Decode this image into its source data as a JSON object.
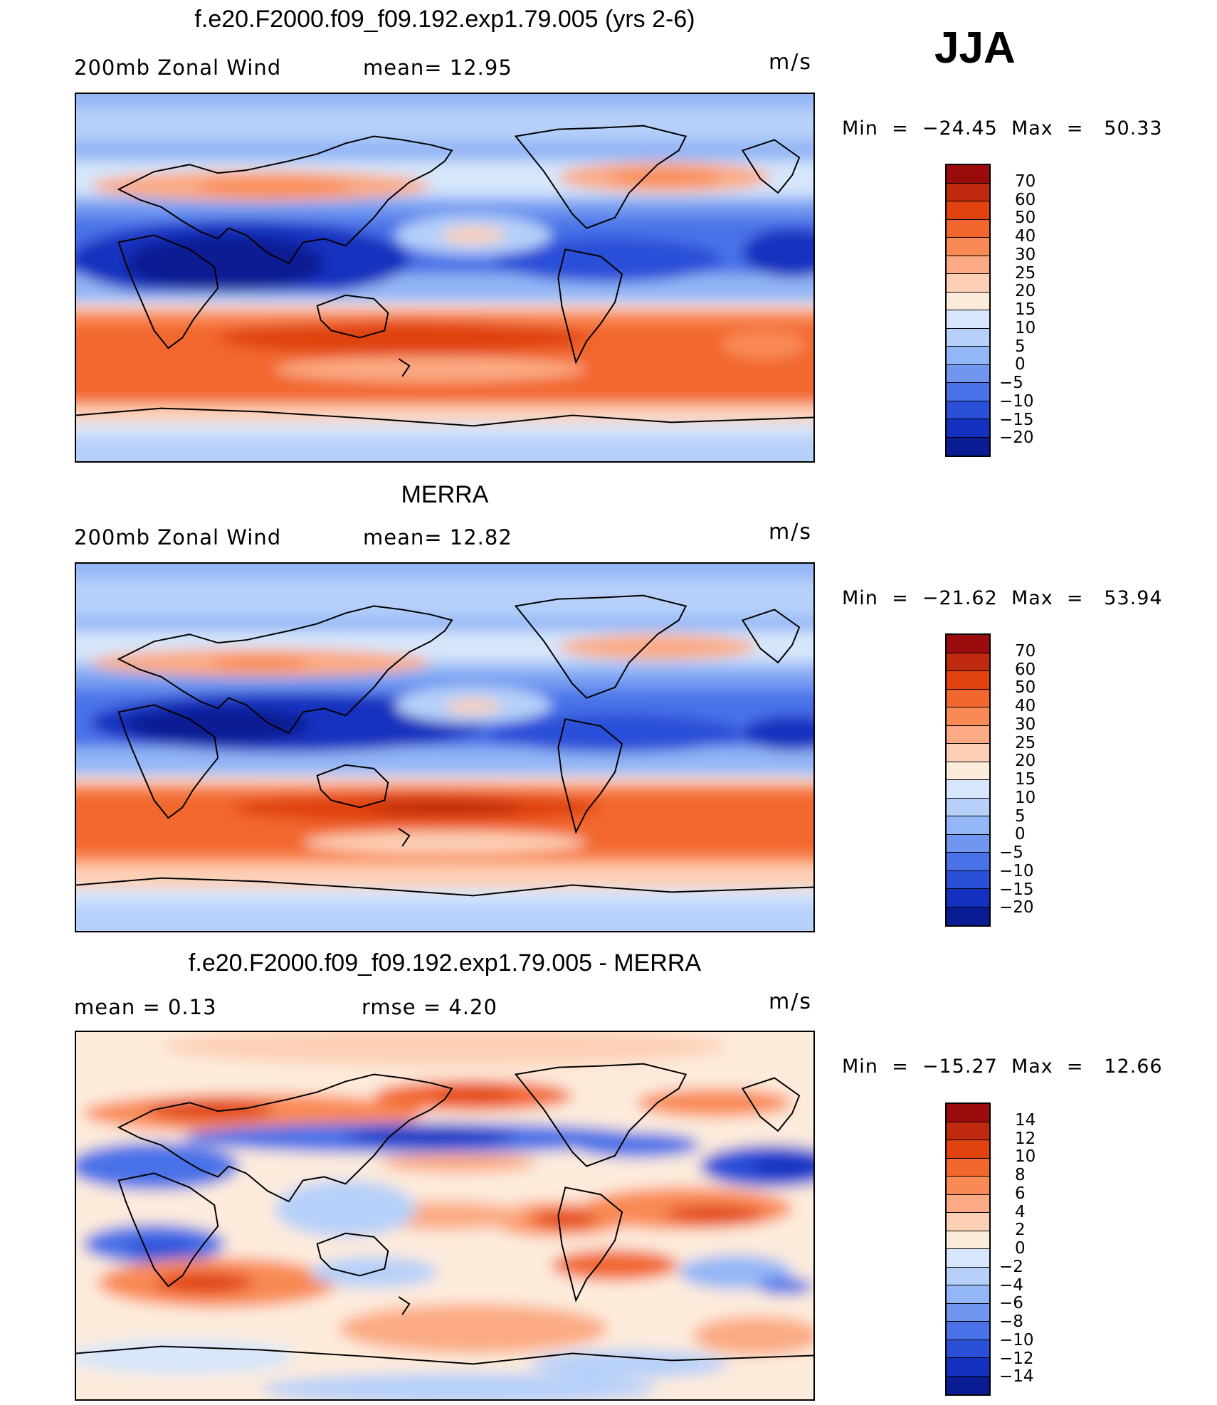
{
  "season": "JJA",
  "panels": [
    {
      "title": "f.e20.F2000.f09_f09.192.exp1.79.005 (yrs 2-6)",
      "left_text": "200mb  Zonal  Wind",
      "mid_text": "mean=   12.95",
      "units": "m/s",
      "minmax": "Min  =  −24.45  Max  =   50.33",
      "colorbar": {
        "labels": [
          "70",
          "60",
          "50",
          "40",
          "30",
          "25",
          "20",
          "15",
          "10",
          "5",
          "0",
          "−5",
          "−10",
          "−15",
          "−20"
        ],
        "colors": [
          "#9a0c0c",
          "#c02a0e",
          "#e0430f",
          "#f2672d",
          "#f98a55",
          "#fbaa83",
          "#fdd0b6",
          "#fdebdc",
          "#d6e6fb",
          "#b6d0f9",
          "#93b6f6",
          "#6f97f0",
          "#4a72e8",
          "#2a50d8",
          "#1231bf",
          "#0a1c93"
        ]
      }
    },
    {
      "title": "MERRA",
      "left_text": "200mb  Zonal  Wind",
      "mid_text": "mean=   12.82",
      "units": "m/s",
      "minmax": "Min  =  −21.62  Max  =   53.94",
      "colorbar": {
        "labels": [
          "70",
          "60",
          "50",
          "40",
          "30",
          "25",
          "20",
          "15",
          "10",
          "5",
          "0",
          "−5",
          "−10",
          "−15",
          "−20"
        ],
        "colors": [
          "#9a0c0c",
          "#c02a0e",
          "#e0430f",
          "#f2672d",
          "#f98a55",
          "#fbaa83",
          "#fdd0b6",
          "#fdebdc",
          "#d6e6fb",
          "#b6d0f9",
          "#93b6f6",
          "#6f97f0",
          "#4a72e8",
          "#2a50d8",
          "#1231bf",
          "#0a1c93"
        ]
      }
    },
    {
      "title": "f.e20.F2000.f09_f09.192.exp1.79.005 - MERRA",
      "left_text": "mean  =     0.13",
      "mid_text": "rmse  =     4.20",
      "units": "m/s",
      "minmax": "Min  =  −15.27  Max  =   12.66",
      "colorbar": {
        "labels": [
          "14",
          "12",
          "10",
          "8",
          "6",
          "4",
          "2",
          "0",
          "−2",
          "−4",
          "−6",
          "−8",
          "−10",
          "−12",
          "−14"
        ],
        "colors": [
          "#9a0c0c",
          "#c02a0e",
          "#e0430f",
          "#f2672d",
          "#f98a55",
          "#fbaa83",
          "#fdd0b6",
          "#fdebdc",
          "#d6e6fb",
          "#b6d0f9",
          "#93b6f6",
          "#6f97f0",
          "#4a72e8",
          "#2a50d8",
          "#1231bf",
          "#0a1c93"
        ]
      }
    }
  ]
}
